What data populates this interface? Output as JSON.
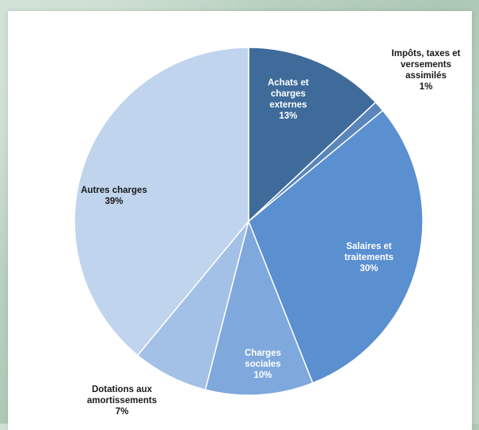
{
  "chart_data": {
    "type": "pie",
    "title": "",
    "slices": [
      {
        "lines": [
          "Achats et",
          "charges",
          "externes",
          "13%"
        ],
        "value": 13,
        "color": "#3f6b9a",
        "text_color": "#ffffff"
      },
      {
        "lines": [
          "Impôts, taxes et",
          "versements",
          "assimilés",
          "1%"
        ],
        "value": 1,
        "color": "#5a86bb",
        "text_color": "#1a1a1a"
      },
      {
        "lines": [
          "Salaires et",
          "traitements",
          "30%"
        ],
        "value": 30,
        "color": "#5a8fd0",
        "text_color": "#ffffff"
      },
      {
        "lines": [
          "Charges",
          "sociales",
          "10%"
        ],
        "value": 10,
        "color": "#7fa8dc",
        "text_color": "#ffffff"
      },
      {
        "lines": [
          "Dotations aux",
          "amortissements",
          "7%"
        ],
        "value": 7,
        "color": "#a3c0e6",
        "text_color": "#1a1a1a"
      },
      {
        "lines": [
          "Autres charges",
          "39%"
        ],
        "value": 39,
        "color": "#c0d4ee",
        "text_color": "#1a1a1a"
      }
    ]
  }
}
